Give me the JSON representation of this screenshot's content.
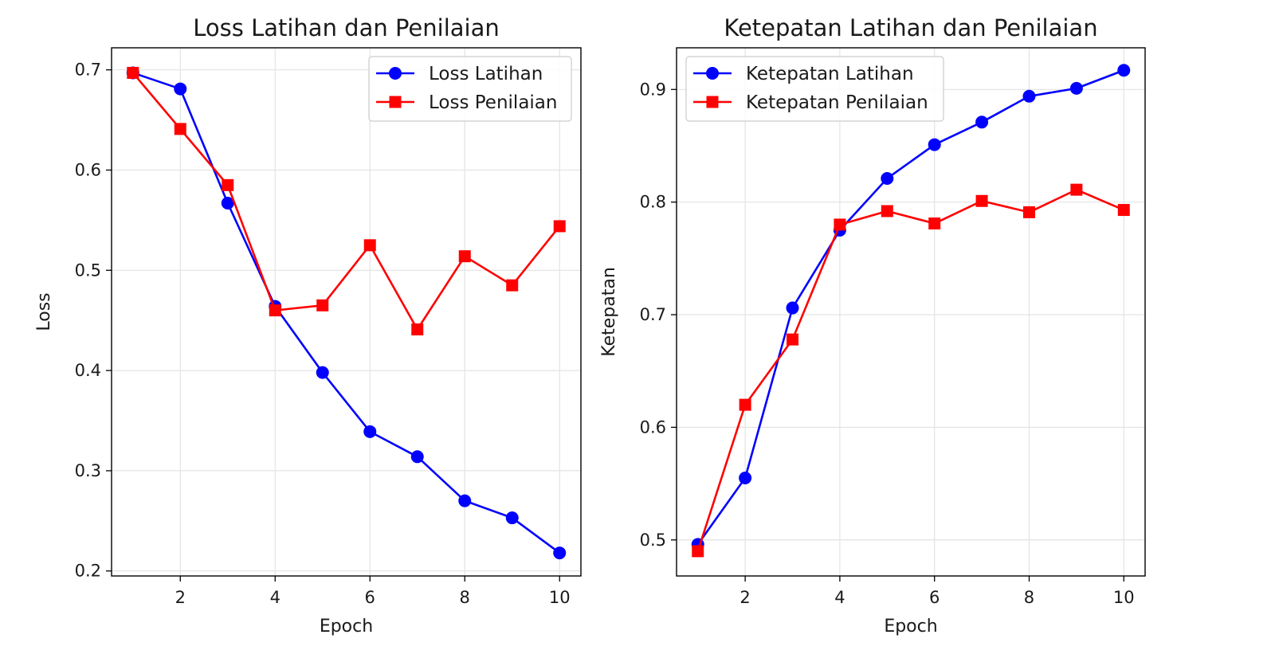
{
  "chart_data": [
    {
      "type": "line",
      "title": "Loss Latihan dan Penilaian",
      "xlabel": "Epoch",
      "ylabel": "Loss",
      "xlim": [
        0.55,
        10.45
      ],
      "ylim": [
        0.195,
        0.722
      ],
      "xticks": [
        2,
        4,
        6,
        8,
        10
      ],
      "yticks": [
        0.2,
        0.3,
        0.4,
        0.5,
        0.6,
        0.7
      ],
      "grid": true,
      "legend_position": "top-right",
      "x": [
        1,
        2,
        3,
        4,
        5,
        6,
        7,
        8,
        9,
        10
      ],
      "series": [
        {
          "name": "Loss Latihan",
          "color": "#0000ff",
          "marker": "circle",
          "values": [
            0.697,
            0.681,
            0.567,
            0.464,
            0.398,
            0.339,
            0.314,
            0.27,
            0.253,
            0.218
          ]
        },
        {
          "name": "Loss Penilaian",
          "color": "#ff0000",
          "marker": "square",
          "values": [
            0.697,
            0.641,
            0.585,
            0.46,
            0.465,
            0.525,
            0.441,
            0.514,
            0.485,
            0.544
          ]
        }
      ]
    },
    {
      "type": "line",
      "title": "Ketepatan Latihan dan Penilaian",
      "xlabel": "Epoch",
      "ylabel": "Ketepatan",
      "xlim": [
        0.55,
        10.45
      ],
      "ylim": [
        0.468,
        0.937
      ],
      "xticks": [
        2,
        4,
        6,
        8,
        10
      ],
      "yticks": [
        0.5,
        0.6,
        0.7,
        0.8,
        0.9
      ],
      "grid": true,
      "legend_position": "top-left",
      "x": [
        1,
        2,
        3,
        4,
        5,
        6,
        7,
        8,
        9,
        10
      ],
      "series": [
        {
          "name": "Ketepatan Latihan",
          "color": "#0000ff",
          "marker": "circle",
          "values": [
            0.496,
            0.555,
            0.706,
            0.775,
            0.821,
            0.851,
            0.871,
            0.894,
            0.901,
            0.917
          ]
        },
        {
          "name": "Ketepatan Penilaian",
          "color": "#ff0000",
          "marker": "square",
          "values": [
            0.49,
            0.62,
            0.678,
            0.78,
            0.792,
            0.781,
            0.801,
            0.791,
            0.811,
            0.793
          ]
        }
      ]
    }
  ]
}
